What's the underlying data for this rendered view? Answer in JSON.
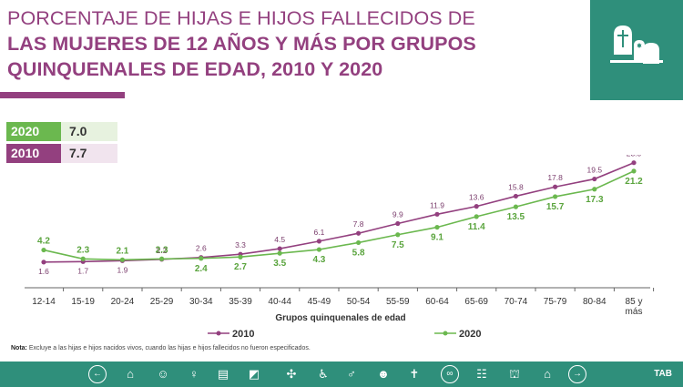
{
  "title": {
    "line1": "PORCENTAJE DE HIJAS E HIJOS FALLECIDOS DE",
    "line2": "LAS MUJERES DE 12 AÑOS Y MÁS POR GRUPOS",
    "line3": "QUINQUENALES DE EDAD, 2010 Y 2020"
  },
  "summary": [
    {
      "year": "2020",
      "value": "7.0"
    },
    {
      "year": "2010",
      "value": "7.7"
    }
  ],
  "colors": {
    "purple": "#93407f",
    "green": "#6bb84f",
    "teal": "#2f8f7b"
  },
  "note": {
    "label": "Nota:",
    "text": " Excluye a las hijas e hijos nacidos vivos, cuando las hijas e hijos fallecidos no fueron especificados."
  },
  "nav": {
    "icons": [
      "arrow-left-icon",
      "library-icon",
      "family-icon",
      "person-icon",
      "documents-icon",
      "map-icon",
      "network-icon",
      "wheelchair-icon",
      "couple-icon",
      "children-icon",
      "grave-icon",
      "rings-icon",
      "group-icon",
      "museum-icon",
      "home-icon",
      "arrow-right-icon"
    ],
    "tab_label": "TAB"
  },
  "chart_data": {
    "type": "line",
    "xlabel": "Grupos quinquenales de edad",
    "ylabel": "",
    "ylim": [
      0,
      25
    ],
    "categories": [
      "12-14",
      "15-19",
      "20-24",
      "25-29",
      "30-34",
      "35-39",
      "40-44",
      "45-49",
      "50-54",
      "55-59",
      "60-64",
      "65-69",
      "70-74",
      "75-79",
      "80-84",
      "85 y más"
    ],
    "series": [
      {
        "name": "2010",
        "values": [
          1.6,
          1.7,
          1.9,
          2.2,
          2.6,
          3.3,
          4.5,
          6.1,
          7.8,
          9.9,
          11.9,
          13.6,
          15.8,
          17.8,
          19.5,
          23.0
        ],
        "labels": [
          "1.6",
          "1.7",
          "1.9",
          "2.2",
          "2.6",
          "3.3",
          "4.5",
          "6.1",
          "7.8",
          "9.9",
          "11.9",
          "13.6",
          "15.8",
          "17.8",
          "19.5",
          "23.0"
        ]
      },
      {
        "name": "2020",
        "values": [
          4.2,
          2.3,
          2.1,
          2.3,
          2.4,
          2.7,
          3.5,
          4.3,
          5.8,
          7.5,
          9.1,
          11.4,
          13.5,
          15.7,
          17.3,
          21.2
        ],
        "labels": [
          "4.2",
          "2.3",
          "2.1",
          "2.3",
          "2.4",
          "2.7",
          "3.5",
          "4.3",
          "5.8",
          "7.5",
          "9.1",
          "11.4",
          "13.5",
          "15.7",
          "17.3",
          "21.2"
        ]
      }
    ],
    "legend": [
      "2010",
      "2020"
    ],
    "legend_position": "bottom"
  }
}
